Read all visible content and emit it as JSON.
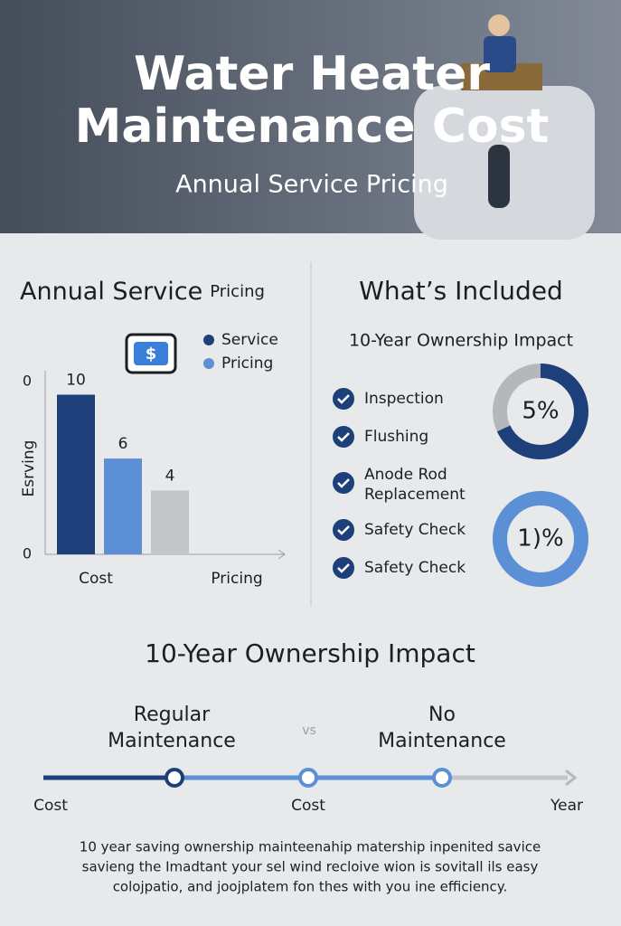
{
  "header": {
    "title_lines": [
      "Water Heater",
      "Maintenance Cost"
    ],
    "subtitle": "Annual Service Pricing"
  },
  "left_panel": {
    "heading_main": "Annual Service",
    "heading_small": "Pricing"
  },
  "chart_data": {
    "type": "bar",
    "y_label": "Esrving",
    "y_top_label": "0",
    "categories": [
      "Cost",
      null,
      null,
      "Pricing"
    ],
    "values": [
      10,
      6,
      4,
      null
    ],
    "colors": [
      "#1d3f7a",
      "#5b8fd6",
      "#c4c5c7",
      "#c4c5c7"
    ],
    "ylim": [
      0,
      11.5
    ],
    "yticks": [
      0
    ],
    "legend": [
      {
        "name": "Service",
        "color": "#1d3f7a"
      },
      {
        "name": "Pricing",
        "color": "#5b8fd6"
      }
    ]
  },
  "right_panel": {
    "heading": "What’s Included",
    "subheading": "10-Year Ownership Impact",
    "items": [
      [
        "Inspection"
      ],
      [
        "Flushing"
      ],
      [
        "Anode Rod",
        "Replacement"
      ],
      [
        "Safety Check"
      ],
      [
        "Safety Check"
      ]
    ],
    "donuts": [
      "5%",
      "1)%"
    ]
  },
  "impact": {
    "heading": "10-Year Ownership Impact",
    "left": [
      "Regular",
      "Maintenance"
    ],
    "vs": "vs",
    "right": [
      "No",
      "Maintenance"
    ],
    "timeline_labels": [
      "Cost",
      "Cost",
      "Year"
    ]
  },
  "footer": [
    "10 year saving ownership mainteenahip matership inpenited savice",
    "savieng the  Imadtant your sel wind recloive wion is sovitall ils easy",
    "colojpatio, and joojplatem fon thes with you ine efficiency."
  ]
}
